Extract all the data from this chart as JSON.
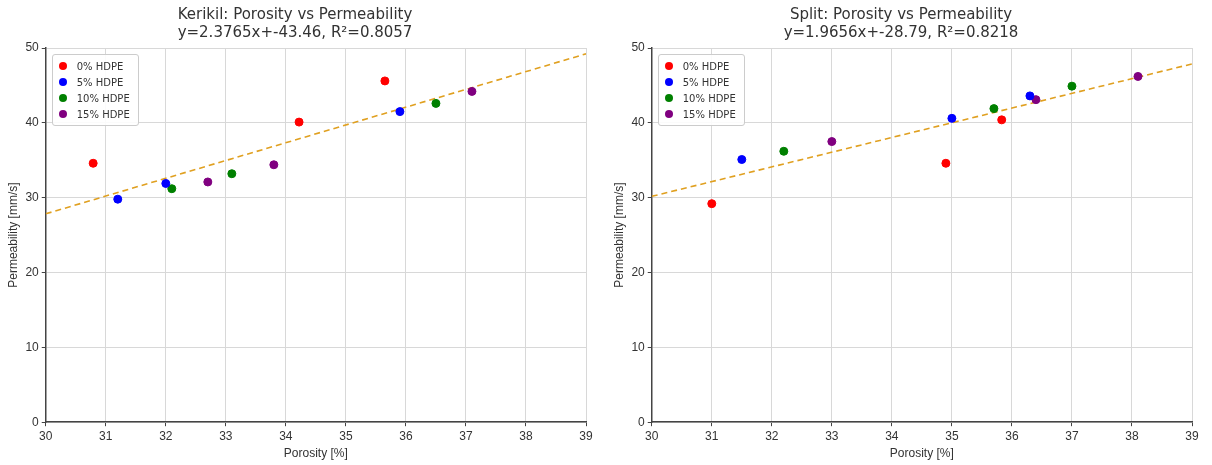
{
  "chart_data": [
    {
      "type": "scatter",
      "title": "Kerikil: Porosity vs Permeability",
      "subtitle": "y=2.3765x+-43.46, R²=0.8057",
      "xlabel": "Porosity [%]",
      "ylabel": "Permeability [mm/s]",
      "xlim": [
        30,
        39
      ],
      "xticks": [
        30,
        31,
        32,
        33,
        34,
        35,
        36,
        37,
        38,
        39
      ],
      "ylim": [
        0,
        50
      ],
      "yticks": [
        0,
        10,
        20,
        30,
        40,
        50
      ],
      "grid": true,
      "legend": "top left",
      "marker": "circle",
      "series": [
        {
          "name": "0% HDPE",
          "color": "#ff0000",
          "x": [
            30.79,
            34.22,
            35.65
          ],
          "values": [
            34.6,
            40.1,
            45.6
          ]
        },
        {
          "name": "5% HDPE",
          "color": "#0000ff",
          "x": [
            31.2,
            32.0,
            35.9
          ],
          "values": [
            29.8,
            31.9,
            41.5
          ]
        },
        {
          "name": "10% HDPE",
          "color": "#008000",
          "x": [
            32.1,
            33.1,
            36.5
          ],
          "values": [
            31.2,
            33.2,
            42.6
          ]
        },
        {
          "name": "15% HDPE",
          "color": "#800080",
          "x": [
            32.7,
            33.8,
            37.1
          ],
          "values": [
            32.1,
            34.4,
            44.2
          ]
        },
        {
          "type": "line",
          "color": "#e0a020",
          "line_style": "dashed",
          "marker": "none",
          "x": [
            30,
            39
          ],
          "values": [
            27.84,
            49.22
          ]
        }
      ]
    },
    {
      "type": "scatter",
      "title": "Split: Porosity vs Permeability",
      "subtitle": "y=1.9656x+-28.79, R²=0.8218",
      "xlabel": "Porosity [%]",
      "ylabel": "Permeability [mm/s]",
      "xlim": [
        30,
        39
      ],
      "xticks": [
        30,
        31,
        32,
        33,
        34,
        35,
        36,
        37,
        38,
        39
      ],
      "ylim": [
        0,
        50
      ],
      "yticks": [
        0,
        10,
        20,
        30,
        40,
        50
      ],
      "grid": true,
      "legend": "top left",
      "marker": "circle",
      "series": [
        {
          "name": "0% HDPE",
          "color": "#ff0000",
          "x": [
            31.0,
            34.9,
            35.83
          ],
          "values": [
            29.2,
            34.6,
            40.4
          ]
        },
        {
          "name": "5% HDPE",
          "color": "#0000ff",
          "x": [
            31.5,
            35.0,
            36.3
          ],
          "values": [
            35.1,
            40.6,
            43.6
          ]
        },
        {
          "name": "10% HDPE",
          "color": "#008000",
          "x": [
            32.2,
            35.7,
            37.0
          ],
          "values": [
            36.2,
            41.9,
            44.9
          ]
        },
        {
          "name": "15% HDPE",
          "color": "#800080",
          "x": [
            33.0,
            36.4,
            38.1
          ],
          "values": [
            37.5,
            43.1,
            46.2
          ]
        },
        {
          "type": "line",
          "color": "#e0a020",
          "line_style": "dashed",
          "marker": "none",
          "x": [
            30,
            39
          ],
          "values": [
            30.18,
            47.87
          ]
        }
      ]
    }
  ]
}
